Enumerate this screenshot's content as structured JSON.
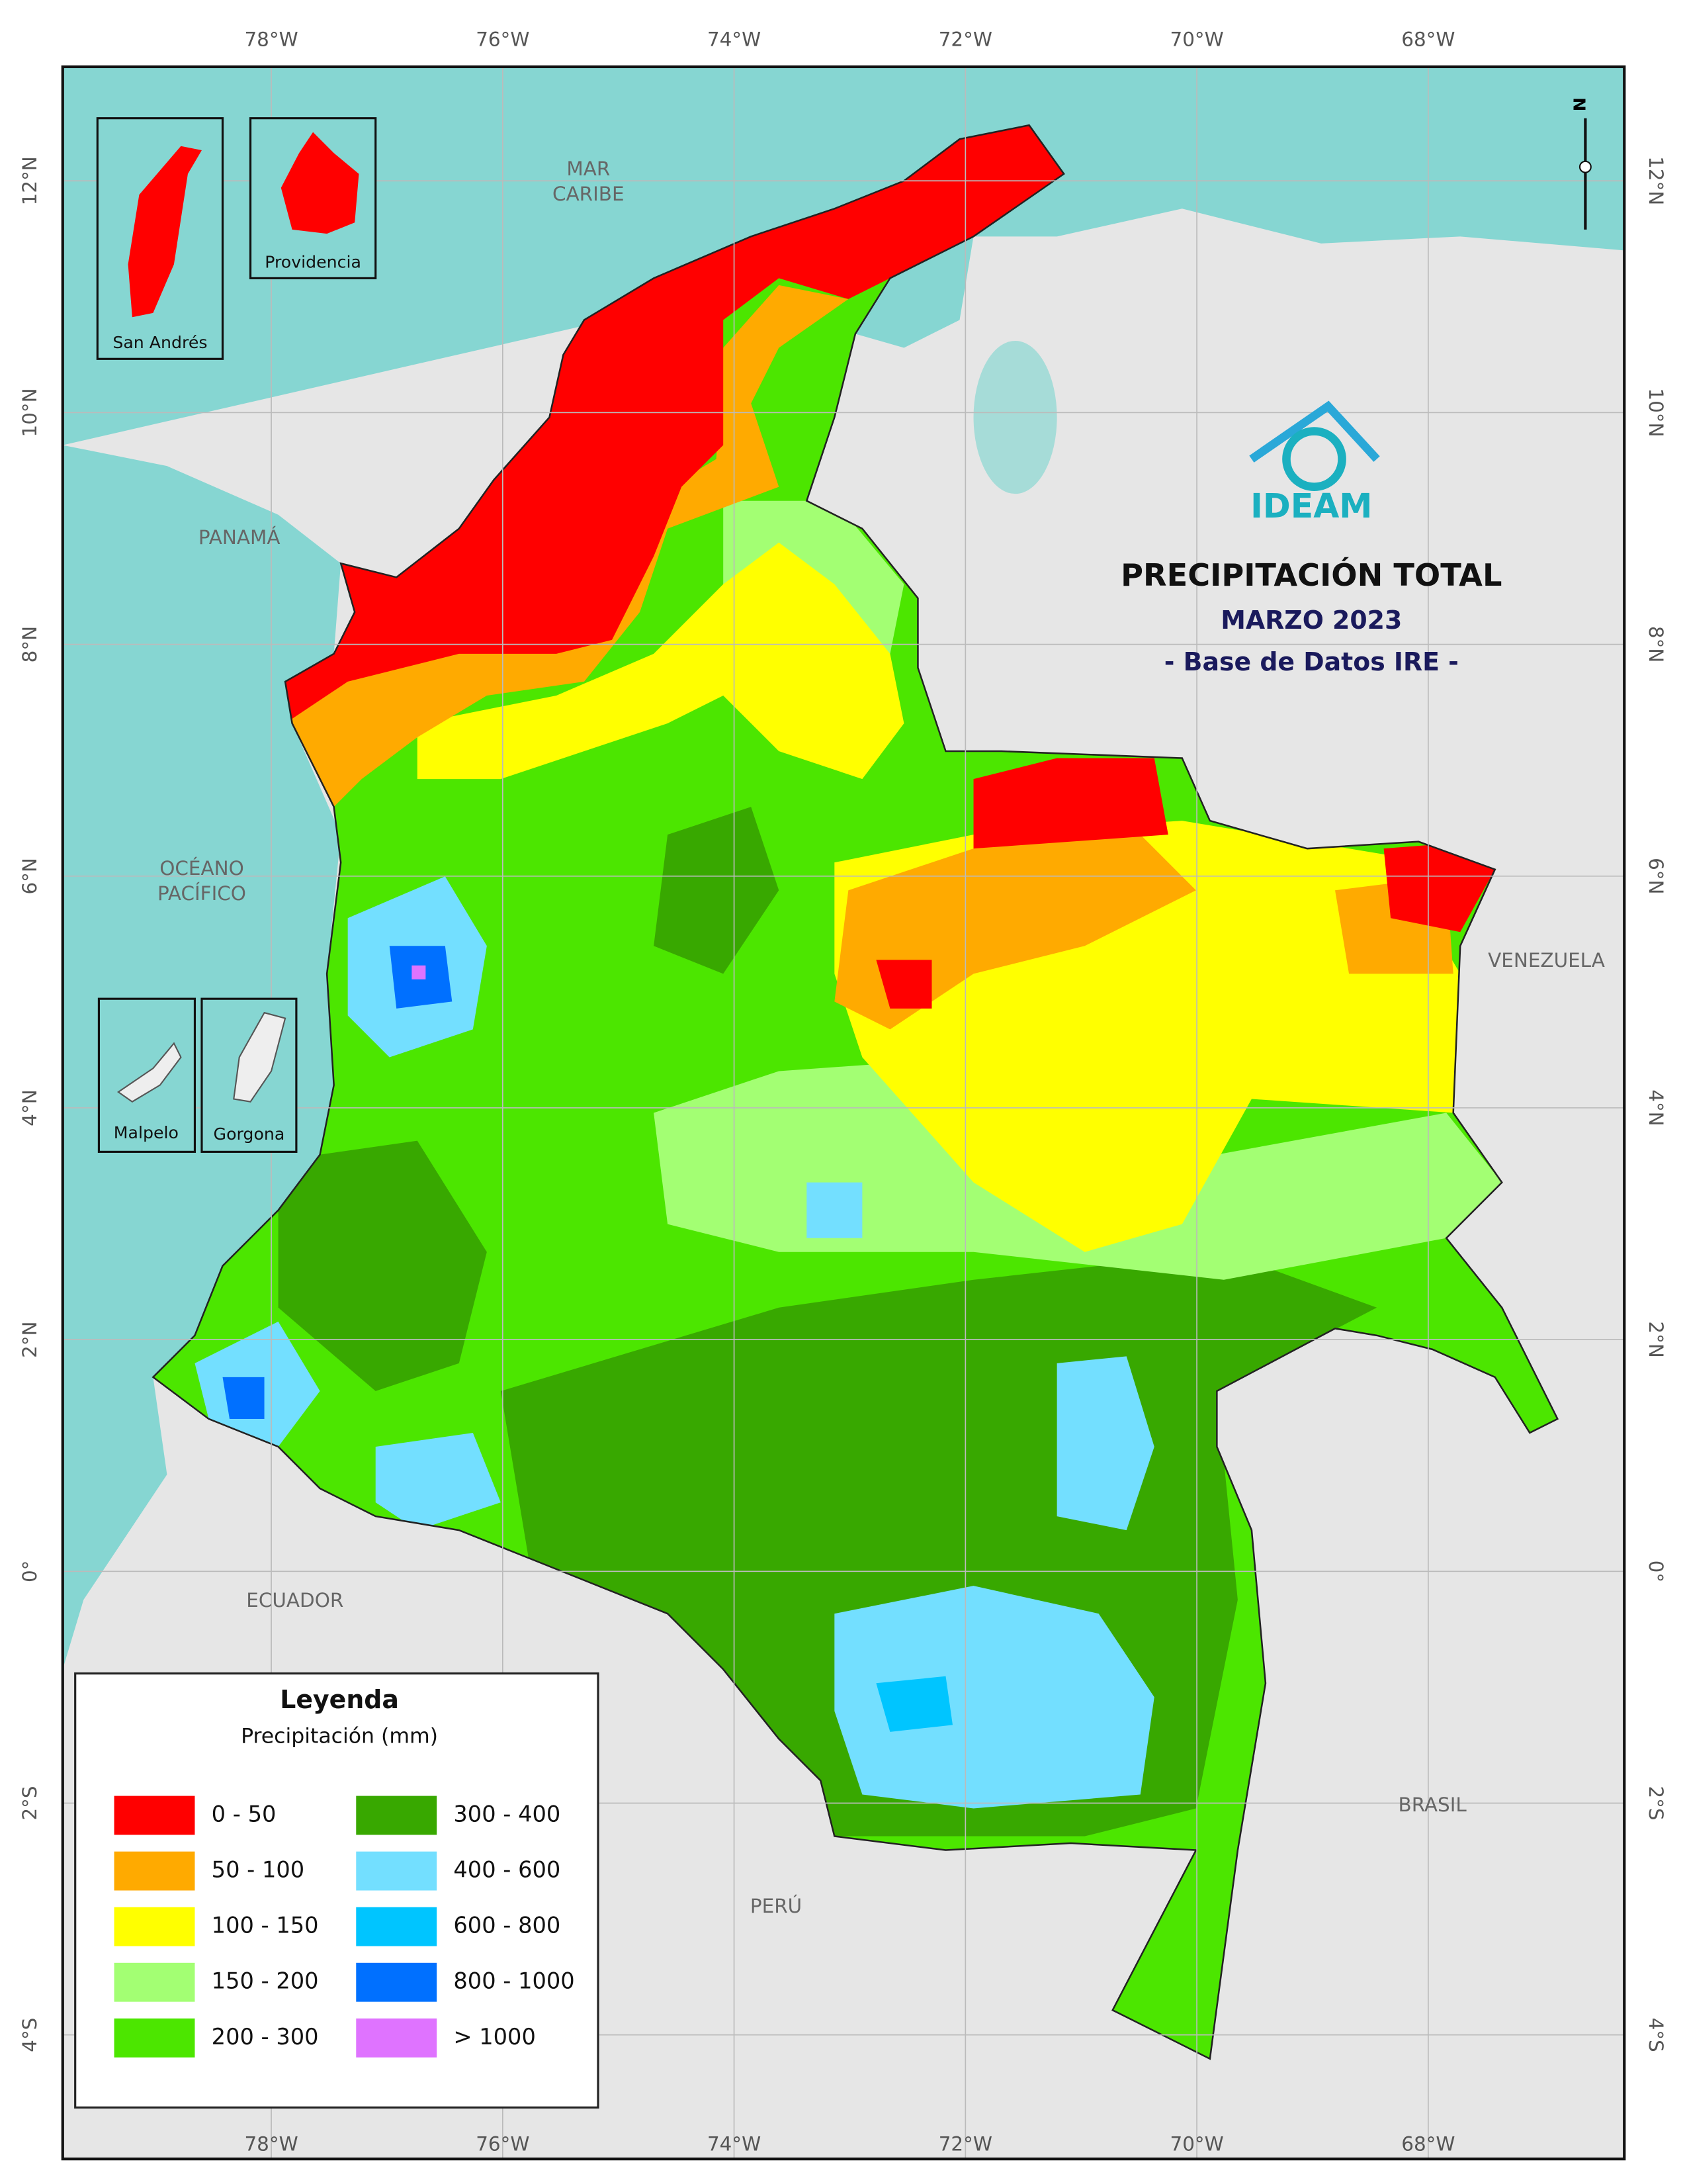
{
  "header": {
    "title": "PRECIPITACIÓN TOTAL",
    "period": "MARZO 2023",
    "source": "- Base de Datos IRE -"
  },
  "logo": "IDEAM",
  "north_arrow": "N",
  "axes": {
    "longitudes": [
      "78°W",
      "76°W",
      "74°W",
      "72°W",
      "70°W",
      "68°W"
    ],
    "latitudes": [
      "12°N",
      "10°N",
      "8°N",
      "6°N",
      "4°N",
      "2°N",
      "0°",
      "2°S",
      "4°S"
    ]
  },
  "places": [
    {
      "lines": [
        "MAR",
        "CARIBE"
      ]
    },
    {
      "lines": [
        "PANAMÁ"
      ]
    },
    {
      "lines": [
        "OCÉANO",
        "PACÍFICO"
      ]
    },
    {
      "lines": [
        "VENEZUELA"
      ]
    },
    {
      "lines": [
        "ECUADOR"
      ]
    },
    {
      "lines": [
        "PERÚ"
      ]
    },
    {
      "lines": [
        "BRASIL"
      ]
    }
  ],
  "insets": [
    "San Andrés",
    "Providencia",
    "Malpelo",
    "Gorgona"
  ],
  "legend": {
    "title": "Leyenda",
    "subtitle": "Precipitación (mm)",
    "items": [
      {
        "label": "0 - 50",
        "color": "#ff0000"
      },
      {
        "label": "50 - 100",
        "color": "#ffaa00"
      },
      {
        "label": "100 - 150",
        "color": "#ffff00"
      },
      {
        "label": "150 - 200",
        "color": "#a3ff73"
      },
      {
        "label": "200 - 300",
        "color": "#4ce600"
      },
      {
        "label": "300 - 400",
        "color": "#38a800"
      },
      {
        "label": "400 - 600",
        "color": "#73dfff"
      },
      {
        "label": "600 - 800",
        "color": "#00c5ff"
      },
      {
        "label": "800 - 1000",
        "color": "#0070ff"
      },
      {
        "label": "> 1000",
        "color": "#df73ff"
      }
    ]
  }
}
